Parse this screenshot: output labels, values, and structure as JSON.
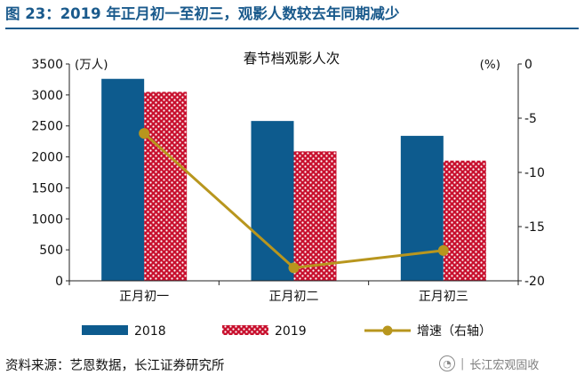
{
  "figure": {
    "title": "图 23：2019 年正月初一至初三，观影人数较去年同期减少",
    "source": "资料来源：艺恩数据，长江证券研究所",
    "watermark": "长江宏观固收"
  },
  "chart_data": {
    "type": "bar",
    "title": "春节档观影人次",
    "categories": [
      "正月初一",
      "正月初二",
      "正月初三"
    ],
    "y_left": {
      "label": "(万人)",
      "lim": [
        0,
        3500
      ],
      "ticks": [
        0,
        500,
        1000,
        1500,
        2000,
        2500,
        3000,
        3500
      ]
    },
    "y_right": {
      "label": "(%)",
      "lim": [
        -20,
        0
      ],
      "ticks": [
        0,
        -5,
        -10,
        -15,
        -20
      ]
    },
    "series": [
      {
        "name": "2018",
        "kind": "bar",
        "axis": "left",
        "color": "#0d5b8e",
        "values": [
          3260,
          2580,
          2340
        ]
      },
      {
        "name": "2019",
        "kind": "bar",
        "axis": "left",
        "color": "#c8102e",
        "pattern": "dots",
        "values": [
          3050,
          2090,
          1940
        ]
      },
      {
        "name": "增速（右轴）",
        "kind": "line",
        "axis": "right",
        "color": "#b8961e",
        "values": [
          -6.4,
          -18.8,
          -17.2
        ]
      }
    ],
    "grid": false,
    "legend_position": "bottom"
  }
}
